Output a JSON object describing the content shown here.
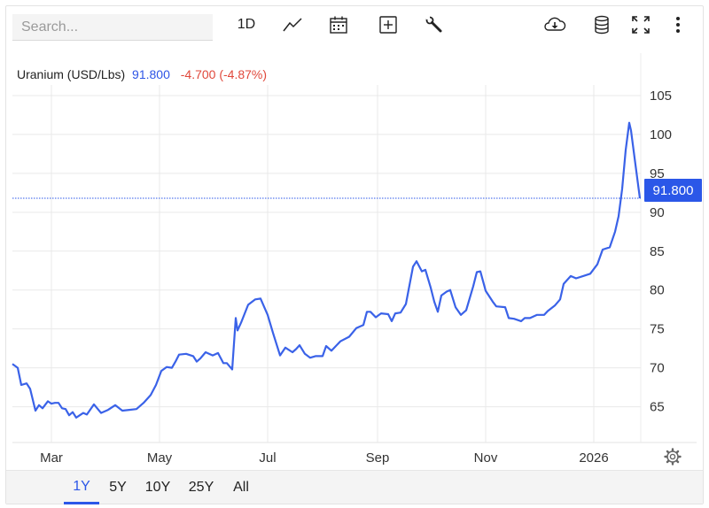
{
  "toolbar": {
    "search_placeholder": "Search...",
    "interval_label": "1D",
    "icons": [
      "line-chart-icon",
      "calendar-icon",
      "add-indicator-icon",
      "wrench-icon",
      "download-icon",
      "database-icon",
      "fullscreen-icon",
      "more-vertical-icon"
    ]
  },
  "legend": {
    "name": "Uranium (USD/Lbs)",
    "price": "91.800",
    "change": "-4.700 (-4.87%)"
  },
  "last_price_tag": "91.800",
  "colors": {
    "line": "#3a62e8",
    "accent": "#2b57e8",
    "negative": "#e0483b",
    "grid": "#e9e9e9"
  },
  "ranges": [
    "1Y",
    "5Y",
    "10Y",
    "25Y",
    "All"
  ],
  "active_range": "1Y",
  "chart_data": {
    "type": "line",
    "title": "Uranium (USD/Lbs)",
    "xlabel": "",
    "ylabel": "",
    "ylim": [
      60.4,
      107.5
    ],
    "yticks": [
      65,
      70,
      75,
      80,
      85,
      90,
      95,
      100,
      105
    ],
    "xticks": [
      "Mar",
      "May",
      "Jul",
      "Sep",
      "Nov",
      "2026"
    ],
    "grid": true,
    "x_start": "2025-02-07",
    "last_value": 91.8,
    "series": [
      {
        "name": "Uranium (USD/Lbs)",
        "color": "#3a62e8",
        "points": [
          [
            "2025-02-07",
            70.5
          ],
          [
            "2025-02-10",
            70.0
          ],
          [
            "2025-02-12",
            67.8
          ],
          [
            "2025-02-15",
            68.0
          ],
          [
            "2025-02-17",
            67.3
          ],
          [
            "2025-02-20",
            64.5
          ],
          [
            "2025-02-22",
            65.2
          ],
          [
            "2025-02-24",
            64.8
          ],
          [
            "2025-02-27",
            65.7
          ],
          [
            "2025-03-01",
            65.4
          ],
          [
            "2025-03-03",
            65.5
          ],
          [
            "2025-03-05",
            65.5
          ],
          [
            "2025-03-07",
            64.8
          ],
          [
            "2025-03-09",
            64.7
          ],
          [
            "2025-03-11",
            63.9
          ],
          [
            "2025-03-13",
            64.3
          ],
          [
            "2025-03-15",
            63.6
          ],
          [
            "2025-03-17",
            63.9
          ],
          [
            "2025-03-19",
            64.2
          ],
          [
            "2025-03-21",
            64.0
          ],
          [
            "2025-03-25",
            65.3
          ],
          [
            "2025-03-29",
            64.2
          ],
          [
            "2025-04-02",
            64.6
          ],
          [
            "2025-04-06",
            65.2
          ],
          [
            "2025-04-10",
            64.5
          ],
          [
            "2025-04-14",
            64.6
          ],
          [
            "2025-04-18",
            64.7
          ],
          [
            "2025-04-22",
            65.5
          ],
          [
            "2025-04-26",
            66.5
          ],
          [
            "2025-04-29",
            67.8
          ],
          [
            "2025-05-02",
            69.6
          ],
          [
            "2025-05-05",
            70.1
          ],
          [
            "2025-05-08",
            70.0
          ],
          [
            "2025-05-10",
            70.8
          ],
          [
            "2025-05-12",
            71.7
          ],
          [
            "2025-05-16",
            71.8
          ],
          [
            "2025-05-20",
            71.5
          ],
          [
            "2025-05-22",
            70.8
          ],
          [
            "2025-05-24",
            71.2
          ],
          [
            "2025-05-27",
            72.0
          ],
          [
            "2025-05-31",
            71.6
          ],
          [
            "2025-06-03",
            71.9
          ],
          [
            "2025-06-06",
            70.6
          ],
          [
            "2025-06-08",
            70.6
          ],
          [
            "2025-06-11",
            69.8
          ],
          [
            "2025-06-13",
            76.4
          ],
          [
            "2025-06-14",
            74.8
          ],
          [
            "2025-06-16",
            75.8
          ],
          [
            "2025-06-20",
            78.1
          ],
          [
            "2025-06-24",
            78.8
          ],
          [
            "2025-06-27",
            78.9
          ],
          [
            "2025-07-01",
            76.8
          ],
          [
            "2025-07-04",
            74.5
          ],
          [
            "2025-07-08",
            71.6
          ],
          [
            "2025-07-11",
            72.6
          ],
          [
            "2025-07-15",
            72.0
          ],
          [
            "2025-07-17",
            72.4
          ],
          [
            "2025-07-19",
            72.9
          ],
          [
            "2025-07-22",
            71.8
          ],
          [
            "2025-07-25",
            71.3
          ],
          [
            "2025-07-28",
            71.5
          ],
          [
            "2025-08-01",
            71.5
          ],
          [
            "2025-08-03",
            72.8
          ],
          [
            "2025-08-06",
            72.2
          ],
          [
            "2025-08-11",
            73.4
          ],
          [
            "2025-08-16",
            74.0
          ],
          [
            "2025-08-20",
            75.1
          ],
          [
            "2025-08-24",
            75.5
          ],
          [
            "2025-08-26",
            77.2
          ],
          [
            "2025-08-28",
            77.2
          ],
          [
            "2025-08-31",
            76.5
          ],
          [
            "2025-09-03",
            77.0
          ],
          [
            "2025-09-07",
            76.9
          ],
          [
            "2025-09-09",
            76.0
          ],
          [
            "2025-09-11",
            77.0
          ],
          [
            "2025-09-14",
            77.1
          ],
          [
            "2025-09-17",
            78.2
          ],
          [
            "2025-09-21",
            83.0
          ],
          [
            "2025-09-23",
            83.7
          ],
          [
            "2025-09-26",
            82.4
          ],
          [
            "2025-09-28",
            82.6
          ],
          [
            "2025-10-01",
            80.3
          ],
          [
            "2025-10-03",
            78.5
          ],
          [
            "2025-10-05",
            77.2
          ],
          [
            "2025-10-07",
            79.3
          ],
          [
            "2025-10-10",
            79.8
          ],
          [
            "2025-10-12",
            80.0
          ],
          [
            "2025-10-15",
            77.8
          ],
          [
            "2025-10-18",
            76.8
          ],
          [
            "2025-10-21",
            77.4
          ],
          [
            "2025-10-25",
            80.5
          ],
          [
            "2025-10-27",
            82.3
          ],
          [
            "2025-10-29",
            82.4
          ],
          [
            "2025-11-01",
            79.9
          ],
          [
            "2025-11-05",
            78.5
          ],
          [
            "2025-11-07",
            77.9
          ],
          [
            "2025-11-12",
            77.8
          ],
          [
            "2025-11-14",
            76.4
          ],
          [
            "2025-11-17",
            76.3
          ],
          [
            "2025-11-21",
            76.0
          ],
          [
            "2025-11-23",
            76.4
          ],
          [
            "2025-11-26",
            76.4
          ],
          [
            "2025-11-30",
            76.8
          ],
          [
            "2025-12-04",
            76.8
          ],
          [
            "2025-12-06",
            77.3
          ],
          [
            "2025-12-10",
            78.0
          ],
          [
            "2025-12-13",
            78.8
          ],
          [
            "2025-12-15",
            80.8
          ],
          [
            "2025-12-19",
            81.8
          ],
          [
            "2025-12-22",
            81.5
          ],
          [
            "2025-12-26",
            81.8
          ],
          [
            "2025-12-30",
            82.1
          ],
          [
            "2026-01-03",
            83.3
          ],
          [
            "2026-01-06",
            85.2
          ],
          [
            "2026-01-10",
            85.5
          ],
          [
            "2026-01-13",
            87.5
          ],
          [
            "2026-01-15",
            89.5
          ],
          [
            "2026-01-17",
            93.0
          ],
          [
            "2026-01-19",
            98.0
          ],
          [
            "2026-01-21",
            101.5
          ],
          [
            "2026-01-22",
            100.5
          ],
          [
            "2026-01-24",
            97.0
          ],
          [
            "2026-01-27",
            91.8
          ]
        ]
      }
    ]
  }
}
